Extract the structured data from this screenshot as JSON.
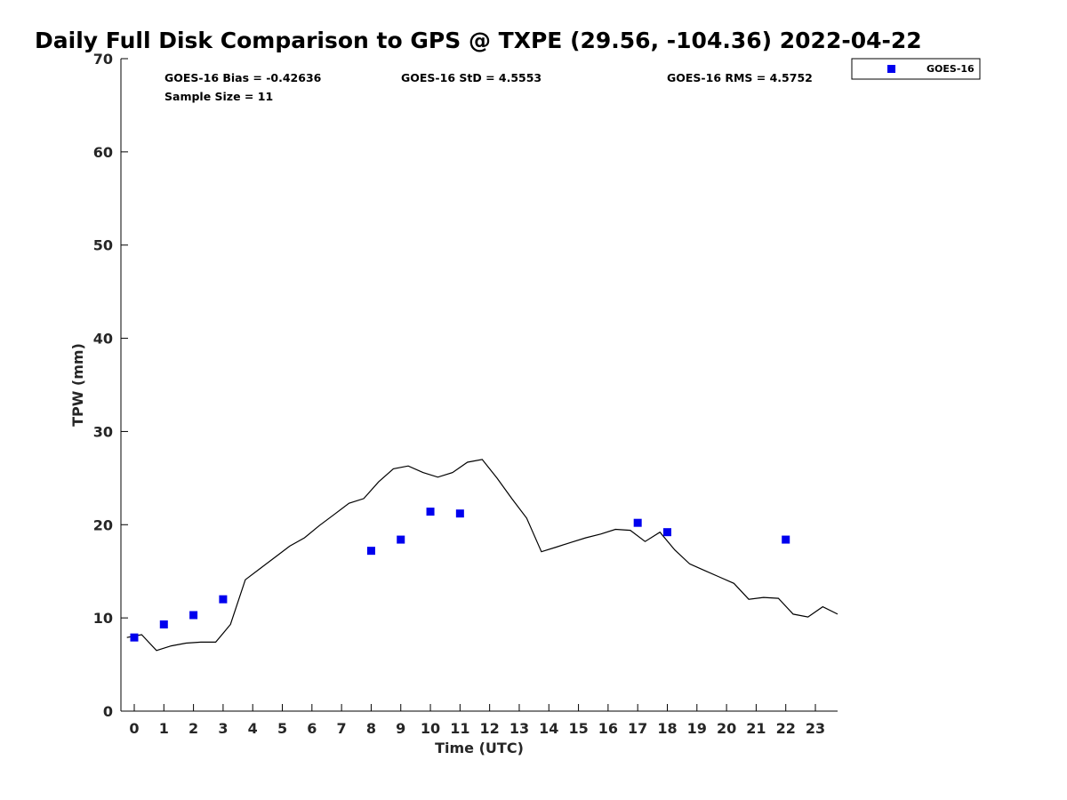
{
  "chart_data": {
    "type": "scatter",
    "title": "Daily Full Disk Comparison to GPS @ TXPE (29.56, -104.36) 2022-04-22",
    "xlabel": "Time (UTC)",
    "ylabel": "TPW (mm)",
    "xlim": [
      -0.45,
      23.75
    ],
    "ylim": [
      0,
      70
    ],
    "xticks": [
      "0",
      "1",
      "2",
      "3",
      "4",
      "5",
      "6",
      "7",
      "8",
      "9",
      "10",
      "11",
      "12",
      "13",
      "14",
      "15",
      "16",
      "17",
      "18",
      "19",
      "20",
      "21",
      "22",
      "23"
    ],
    "yticks": [
      "0",
      "10",
      "20",
      "30",
      "40",
      "50",
      "60",
      "70"
    ],
    "grid": false,
    "legend_position": "top-right (outside plot)",
    "stats": {
      "bias": "GOES-16 Bias = -0.42636",
      "std": "GOES-16 StD = 4.5553",
      "rms": "GOES-16 RMS = 4.5752",
      "sample_size": "Sample Size = 11"
    },
    "series": [
      {
        "name": "GOES-16",
        "kind": "scatter",
        "marker": "square",
        "color": "#0000ee",
        "x": [
          0,
          1,
          2,
          3,
          8,
          9,
          10,
          11,
          17,
          18,
          22
        ],
        "y": [
          7.9,
          9.3,
          10.3,
          12.0,
          17.2,
          18.4,
          21.4,
          21.2,
          20.2,
          19.2,
          18.4
        ]
      },
      {
        "kind": "line",
        "color": "#000000",
        "x": [
          -0.25,
          0.25,
          0.75,
          1.25,
          1.75,
          2.25,
          2.75,
          3.25,
          3.75,
          4.25,
          4.75,
          5.25,
          5.75,
          6.25,
          6.75,
          7.25,
          7.75,
          8.25,
          8.75,
          9.25,
          9.75,
          10.25,
          10.75,
          11.25,
          11.75,
          12.25,
          12.75,
          13.25,
          13.75,
          14.25,
          14.75,
          15.25,
          15.75,
          16.25,
          16.75,
          17.25,
          17.75,
          18.25,
          18.75,
          19.25,
          19.75,
          20.25,
          20.75,
          21.25,
          21.75,
          22.25,
          22.75,
          23.25,
          23.75
        ],
        "y": [
          7.9,
          8.2,
          6.5,
          7.0,
          7.3,
          7.4,
          7.4,
          9.3,
          14.1,
          15.3,
          16.5,
          17.7,
          18.6,
          19.9,
          21.1,
          22.3,
          22.8,
          24.6,
          26.0,
          26.3,
          25.6,
          25.1,
          25.6,
          26.7,
          27.0,
          25.0,
          22.8,
          20.7,
          17.1,
          17.6,
          18.1,
          18.6,
          19.0,
          19.5,
          19.4,
          18.2,
          19.2,
          17.3,
          15.8,
          15.1,
          14.4,
          13.7,
          12.0,
          12.2,
          12.1,
          10.4,
          10.1,
          11.2,
          10.4
        ]
      }
    ]
  }
}
